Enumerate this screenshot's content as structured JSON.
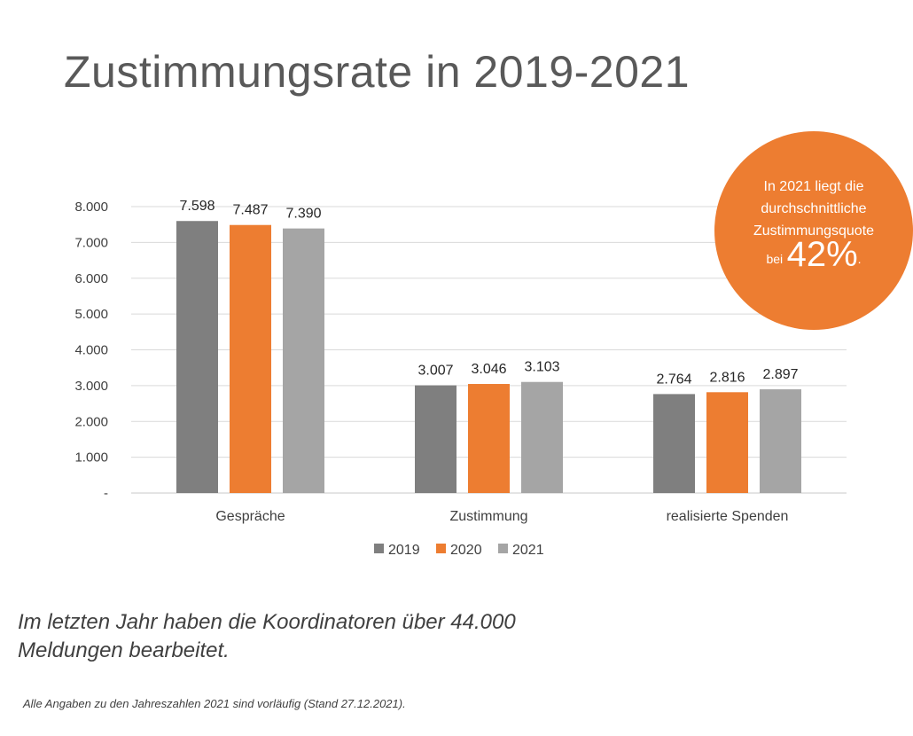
{
  "title": "Zustimmungsrate in 2019-2021",
  "colors": {
    "s2019": "#7F7F7F",
    "s2020": "#ED7D31",
    "s2021": "#A5A5A5",
    "accent": "#ED7D31"
  },
  "chart_data": {
    "type": "bar",
    "categories": [
      "Gespräche",
      "Zustimmung",
      "realisierte Spenden"
    ],
    "series": [
      {
        "name": "2019",
        "values": [
          7598,
          3007,
          2764
        ],
        "labels": [
          "7.598",
          "3.007",
          "2.764"
        ]
      },
      {
        "name": "2020",
        "values": [
          7487,
          3046,
          2816
        ],
        "labels": [
          "7.487",
          "3.046",
          "2.816"
        ]
      },
      {
        "name": "2021",
        "values": [
          7390,
          3103,
          2897
        ],
        "labels": [
          "7.390",
          "3.103",
          "2.897"
        ]
      }
    ],
    "ylim": [
      0,
      8000
    ],
    "yticks": [
      0,
      1000,
      2000,
      3000,
      4000,
      5000,
      6000,
      7000,
      8000
    ],
    "ytick_labels": [
      "-",
      "1.000",
      "2.000",
      "3.000",
      "4.000",
      "5.000",
      "6.000",
      "7.000",
      "8.000"
    ],
    "grid": true,
    "legend_position": "bottom"
  },
  "callout": {
    "lines": [
      "In 2021 liegt die",
      "durchschnittliche",
      "Zustimmungsquote"
    ],
    "prefix": "bei",
    "percent": "42%",
    "suffix": "."
  },
  "note": "Im letzten Jahr haben die Koordinatoren über 44.000 Meldungen bearbeitet.",
  "footnote": "Alle Angaben zu den Jahreszahlen 2021 sind vorläufig (Stand 27.12.2021)."
}
